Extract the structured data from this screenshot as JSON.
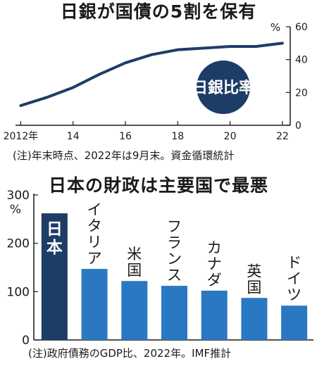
{
  "chart_data": [
    {
      "type": "line",
      "title": "日銀が国債の5割を保有",
      "note": "(注)年末時点、2022年は9月末。資金循環統計",
      "unit": "%",
      "x": [
        2012,
        2013,
        2014,
        2015,
        2016,
        2017,
        2018,
        2019,
        2020,
        2021,
        2022
      ],
      "series": [
        {
          "name": "日銀比率",
          "values": [
            12,
            17,
            23,
            31,
            38,
            43,
            46,
            47,
            48,
            48,
            50
          ]
        }
      ],
      "x_ticks": [
        "2012年",
        "14",
        "16",
        "18",
        "20",
        "22"
      ],
      "x_tick_values": [
        2012,
        2014,
        2016,
        2018,
        2020,
        2022
      ],
      "y_ticks": [
        "0",
        "20",
        "40",
        "60"
      ],
      "y_tick_values": [
        0,
        20,
        40,
        60
      ],
      "xlim": [
        2011.8,
        2022.3
      ],
      "ylim": [
        0,
        60
      ],
      "colors": {
        "line": "#1e3d66",
        "badge": "#1e3d66",
        "badge_text": "#ffffff"
      }
    },
    {
      "type": "bar",
      "title": "日本の財政は主要国で最悪",
      "note": "(注)政府債務のGDP比、2022年。IMF推計",
      "unit": "%",
      "categories": [
        "日本",
        "イタリア",
        "米国",
        "フランス",
        "カナダ",
        "英国",
        "ドイツ"
      ],
      "values": [
        262,
        147,
        122,
        112,
        102,
        87,
        71
      ],
      "y_ticks": [
        "0",
        "100",
        "200",
        "300"
      ],
      "y_tick_values": [
        0,
        100,
        200,
        300
      ],
      "ylim": [
        0,
        300
      ],
      "colors": {
        "highlight": "#1e3d66",
        "bar": "#2b78c2",
        "highlight_text": "#ffffff"
      }
    }
  ]
}
